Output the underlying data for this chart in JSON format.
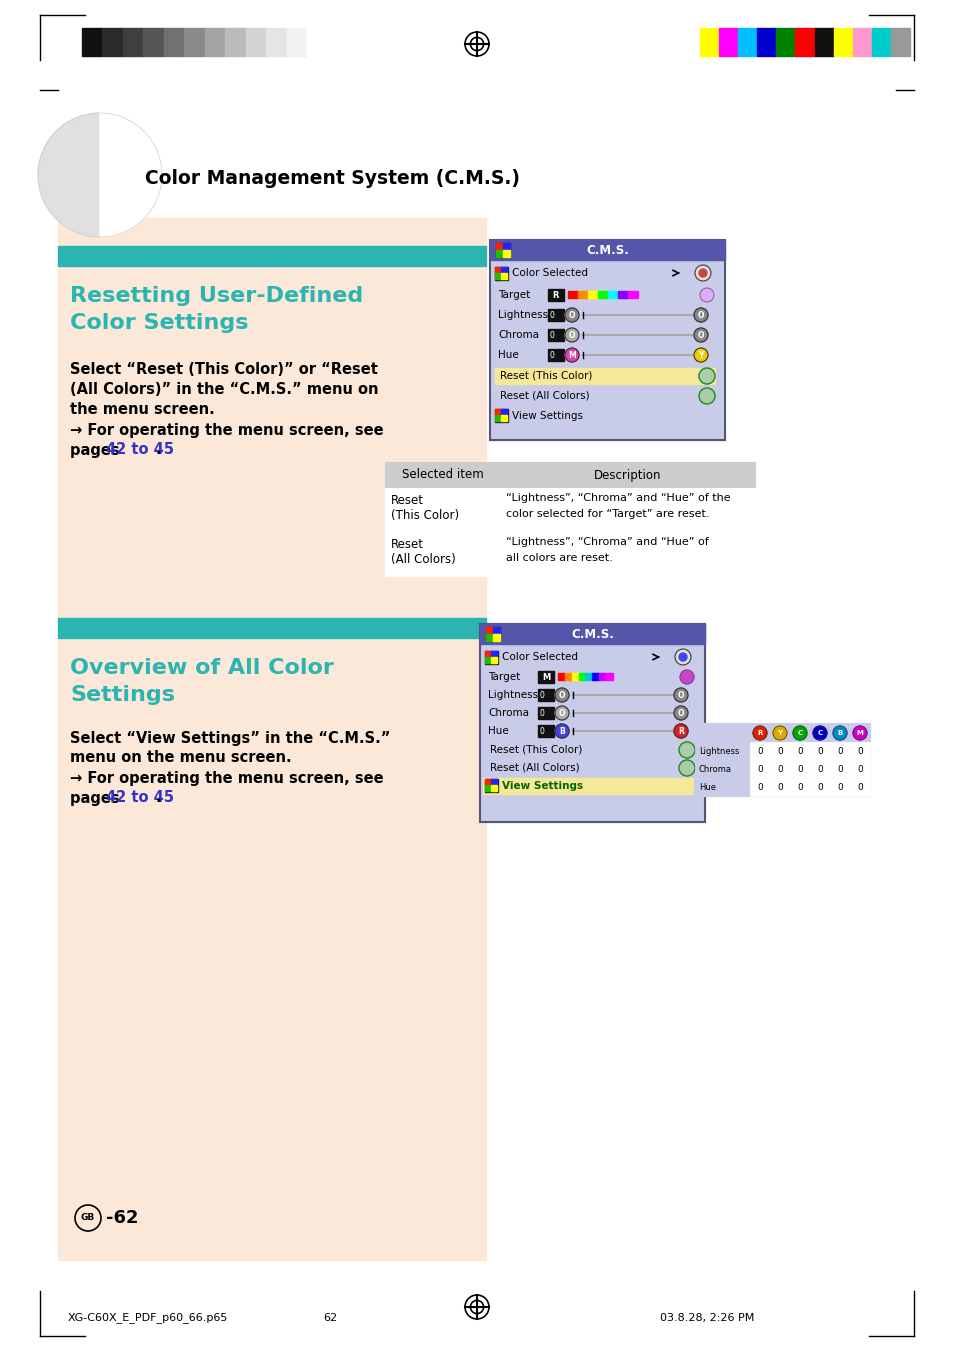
{
  "page_bg": "#ffffff",
  "left_panel_bg": "#fce8d8",
  "header_bar_color": "#2ab5b0",
  "title_color": "#2ab5b0",
  "link_color": "#3333cc",
  "cms_box_bg": "#c8cce8",
  "cms_title_bar_bg": "#5555aa",
  "cms_row_selected_bg": "#f5e898",
  "cms_vs_selected_bg": "#f5e898",
  "grayscale_colors": [
    "#111111",
    "#2a2a2a",
    "#3f3f3f",
    "#565656",
    "#717171",
    "#8a8a8a",
    "#a3a3a3",
    "#bbbbbb",
    "#d3d3d3",
    "#e5e5e5",
    "#f2f2f2",
    "#ffffff"
  ],
  "color_bar_colors": [
    "#ffff00",
    "#ff00ff",
    "#00bfff",
    "#0000cd",
    "#008000",
    "#ff0000",
    "#111111",
    "#ffff00",
    "#ff99cc",
    "#00cccc",
    "#999999"
  ],
  "table_header_bg": "#dddddd",
  "footer_left": "XG-C60X_E_PDF_p60_66.p65",
  "footer_center": "62",
  "footer_right": "03.8.28, 2:26 PM"
}
